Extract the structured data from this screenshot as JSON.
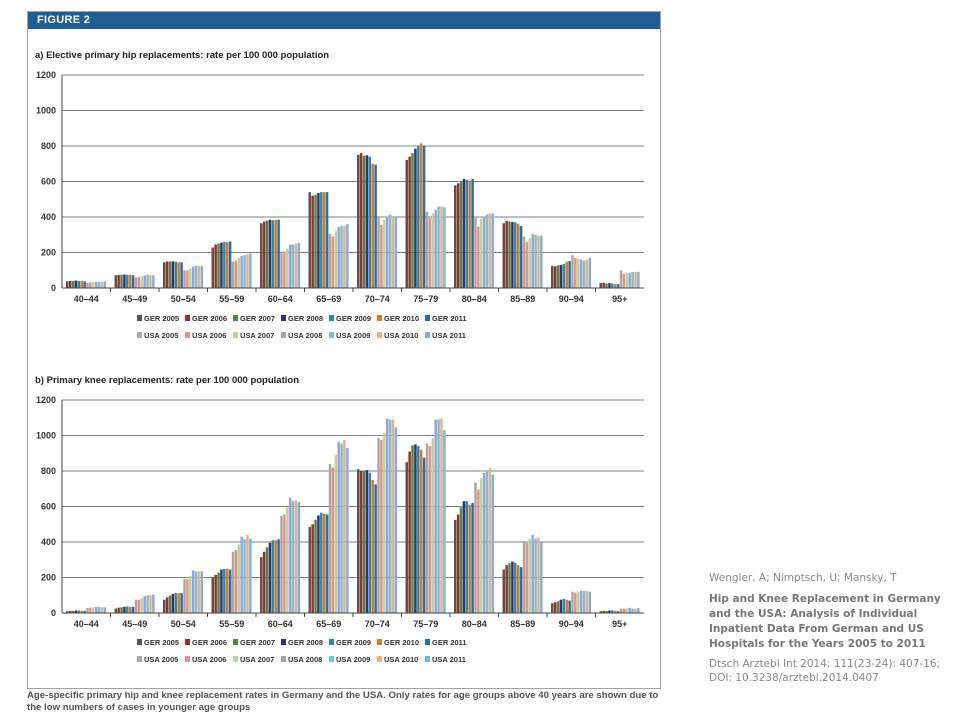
{
  "figure": {
    "label": "FIGURE 2"
  },
  "caption": "Age-specific primary hip and knee replacement rates in Germany and the USA. Only rates for age groups above 40 years are shown due to the low numbers of cases in younger age groups",
  "citation": {
    "authors": "Wengler, A; Nimptsch, U; Mansky, T",
    "title": "Hip and Knee Replacement in Germany and the USA: Analysis of Individual Inpatient Data From German and US Hospitals for the Years 2005 to 2011",
    "journal": "Dtsch Arztebl Int 2014; 111(23-24): 407-16; DOI: 10.3238/arztebl.2014.0407"
  },
  "colors": {
    "GER 2005": "#555555",
    "GER 2006": "#a42a2a",
    "GER 2007": "#4e8a3c",
    "GER 2008": "#3b2f73",
    "GER 2009": "#2b8aa6",
    "GER 2010": "#d8792a",
    "GER 2011": "#2a6ea8",
    "USA 2005": "#a9a9a9",
    "USA 2006": "#e8918c",
    "USA 2007": "#b8d7a0",
    "USA 2008": "#a8a0cc",
    "USA 2009": "#6fc6dc",
    "USA 2010": "#f2ad82",
    "USA 2011": "#7eb2dc"
  },
  "chart_data": [
    {
      "type": "bar",
      "title": "a) Elective primary hip replacements: rate per 100 000 population",
      "ylim": [
        0,
        1200
      ],
      "yticks": [
        0,
        200,
        400,
        600,
        800,
        1000,
        1200
      ],
      "categories": [
        "40–44",
        "45–49",
        "50–54",
        "55–59",
        "60–64",
        "65–69",
        "70–74",
        "75–79",
        "80–84",
        "85–89",
        "90–94",
        "95+"
      ],
      "legend_rows": [
        [
          "GER 2005",
          "GER 2006",
          "GER 2007",
          "GER 2008",
          "GER 2009",
          "GER 2010",
          "GER 2011"
        ],
        [
          "USA 2005",
          "USA 2006",
          "USA 2007",
          "USA 2008",
          "USA 2009",
          "USA 2010",
          "USA 2011"
        ]
      ],
      "series": [
        {
          "name": "GER 2005",
          "values": [
            38,
            72,
            145,
            228,
            365,
            540,
            750,
            722,
            578,
            365,
            125,
            28
          ]
        },
        {
          "name": "GER 2006",
          "values": [
            40,
            74,
            150,
            245,
            375,
            520,
            760,
            740,
            590,
            378,
            122,
            30
          ]
        },
        {
          "name": "GER 2007",
          "values": [
            40,
            75,
            150,
            250,
            380,
            525,
            745,
            760,
            600,
            375,
            128,
            25
          ]
        },
        {
          "name": "GER 2008",
          "values": [
            42,
            76,
            150,
            255,
            385,
            535,
            748,
            785,
            615,
            372,
            130,
            27
          ]
        },
        {
          "name": "GER 2009",
          "values": [
            40,
            75,
            148,
            260,
            382,
            540,
            740,
            800,
            610,
            370,
            135,
            25
          ]
        },
        {
          "name": "GER 2010",
          "values": [
            40,
            74,
            145,
            258,
            383,
            540,
            700,
            815,
            600,
            362,
            148,
            22
          ]
        },
        {
          "name": "GER 2011",
          "values": [
            38,
            72,
            145,
            262,
            385,
            540,
            695,
            800,
            615,
            350,
            152,
            22
          ]
        },
        {
          "name": "USA 2005",
          "values": [
            30,
            60,
            100,
            148,
            200,
            305,
            400,
            430,
            395,
            290,
            185,
            100
          ]
        },
        {
          "name": "USA 2006",
          "values": [
            32,
            62,
            100,
            155,
            205,
            290,
            355,
            395,
            345,
            260,
            170,
            80
          ]
        },
        {
          "name": "USA 2007",
          "values": [
            34,
            65,
            110,
            170,
            220,
            320,
            385,
            420,
            390,
            280,
            165,
            85
          ]
        },
        {
          "name": "USA 2008",
          "values": [
            35,
            70,
            120,
            180,
            245,
            345,
            395,
            440,
            400,
            305,
            160,
            85
          ]
        },
        {
          "name": "USA 2009",
          "values": [
            36,
            75,
            125,
            185,
            245,
            350,
            415,
            460,
            415,
            300,
            155,
            90
          ]
        },
        {
          "name": "USA 2010",
          "values": [
            35,
            72,
            125,
            190,
            250,
            350,
            395,
            460,
            420,
            295,
            160,
            90
          ]
        },
        {
          "name": "USA 2011",
          "values": [
            37,
            72,
            125,
            195,
            255,
            360,
            400,
            455,
            420,
            295,
            170,
            92
          ]
        }
      ]
    },
    {
      "type": "bar",
      "title": "b) Primary knee replacements: rate per 100 000 population",
      "ylim": [
        0,
        1200
      ],
      "yticks": [
        0,
        200,
        400,
        600,
        800,
        1000,
        1200
      ],
      "categories": [
        "40–44",
        "45–49",
        "50–54",
        "55–59",
        "60–64",
        "65–69",
        "70–74",
        "75–79",
        "80–84",
        "85–89",
        "90–94",
        "95+"
      ],
      "legend_rows": [
        [
          "GER 2005",
          "GER 2006",
          "GER 2007",
          "GER 2008",
          "GER 2009",
          "GER 2010",
          "GER 2011"
        ],
        [
          "USA 2005",
          "USA 2006",
          "USA 2007",
          "USA 2008",
          "USA 2009",
          "USA 2010",
          "USA 2011"
        ]
      ],
      "series": [
        {
          "name": "GER 2005",
          "values": [
            10,
            25,
            75,
            200,
            315,
            485,
            810,
            850,
            525,
            245,
            55,
            10
          ]
        },
        {
          "name": "GER 2006",
          "values": [
            12,
            30,
            88,
            215,
            345,
            500,
            800,
            910,
            555,
            270,
            60,
            12
          ]
        },
        {
          "name": "GER 2007",
          "values": [
            12,
            32,
            98,
            228,
            370,
            525,
            800,
            945,
            595,
            280,
            65,
            12
          ]
        },
        {
          "name": "GER 2008",
          "values": [
            14,
            35,
            108,
            245,
            395,
            550,
            805,
            950,
            630,
            290,
            75,
            14
          ]
        },
        {
          "name": "GER 2009",
          "values": [
            14,
            37,
            112,
            248,
            410,
            565,
            790,
            940,
            630,
            283,
            80,
            15
          ]
        },
        {
          "name": "GER 2010",
          "values": [
            13,
            35,
            112,
            250,
            410,
            558,
            750,
            920,
            610,
            270,
            75,
            12
          ]
        },
        {
          "name": "GER 2011",
          "values": [
            12,
            35,
            112,
            245,
            415,
            555,
            725,
            875,
            620,
            258,
            70,
            10
          ]
        },
        {
          "name": "USA 2005",
          "values": [
            28,
            75,
            190,
            345,
            548,
            840,
            985,
            955,
            735,
            400,
            120,
            25
          ]
        },
        {
          "name": "USA 2006",
          "values": [
            30,
            75,
            190,
            355,
            555,
            820,
            975,
            940,
            695,
            395,
            115,
            25
          ]
        },
        {
          "name": "USA 2007",
          "values": [
            32,
            85,
            208,
            385,
            595,
            890,
            1015,
            985,
            760,
            420,
            120,
            25
          ]
        },
        {
          "name": "USA 2008",
          "values": [
            34,
            95,
            240,
            430,
            650,
            965,
            1095,
            1090,
            790,
            440,
            125,
            30
          ]
        },
        {
          "name": "USA 2009",
          "values": [
            35,
            100,
            235,
            415,
            630,
            955,
            1090,
            1090,
            800,
            420,
            125,
            25
          ]
        },
        {
          "name": "USA 2010",
          "values": [
            32,
            100,
            235,
            440,
            635,
            975,
            1090,
            1095,
            815,
            425,
            125,
            25
          ]
        },
        {
          "name": "USA 2011",
          "values": [
            32,
            105,
            235,
            420,
            625,
            930,
            1045,
            1030,
            780,
            405,
            120,
            28
          ]
        }
      ]
    }
  ]
}
